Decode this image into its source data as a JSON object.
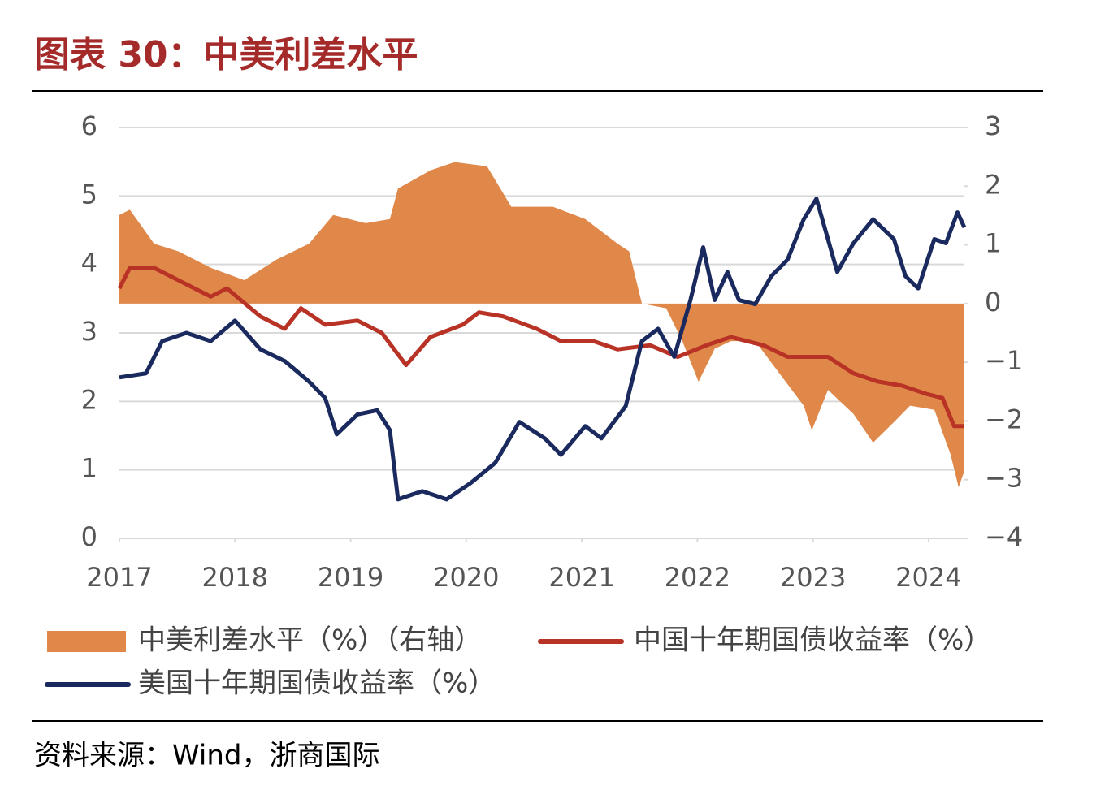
{
  "chart_data": {
    "type": "line",
    "title": "图表 30：中美利差水平",
    "source": "资料来源：Wind，浙商国际",
    "xlim": [
      2017,
      2024.31
    ],
    "xticks": [
      2017,
      2018,
      2019,
      2020,
      2021,
      2022,
      2023,
      2024
    ],
    "ylim": [
      0,
      6
    ],
    "yticks": [
      0,
      1,
      2,
      3,
      4,
      5,
      6
    ],
    "y2lim": [
      -4,
      3
    ],
    "y2ticks": [
      {
        "value": -4,
        "label": "−4"
      },
      {
        "value": -3,
        "label": "−3"
      },
      {
        "value": -2,
        "label": "−2"
      },
      {
        "value": -1,
        "label": "−1"
      },
      0,
      1,
      2,
      3
    ],
    "grid": true,
    "series": [
      {
        "name": "中美利差水平（%）（右轴）",
        "type": "area",
        "axis": "y2",
        "color": "#e0884a",
        "x": [
          2017.0,
          2017.09,
          2017.3,
          2017.51,
          2017.79,
          2018.08,
          2018.36,
          2018.64,
          2018.85,
          2019.13,
          2019.34,
          2019.41,
          2019.69,
          2019.9,
          2020.18,
          2020.39,
          2020.75,
          2021.03,
          2021.31,
          2021.41,
          2021.52,
          2021.73,
          2021.87,
          2022.01,
          2022.15,
          2022.29,
          2022.5,
          2022.71,
          2022.92,
          2022.99,
          2023.13,
          2023.35,
          2023.52,
          2023.7,
          2023.84,
          2024.05,
          2024.19,
          2024.26,
          2024.31
        ],
        "values": [
          1.51,
          1.6,
          1.02,
          0.89,
          0.61,
          0.4,
          0.75,
          1.02,
          1.51,
          1.37,
          1.44,
          1.96,
          2.27,
          2.41,
          2.34,
          1.65,
          1.65,
          1.44,
          1.02,
          0.89,
          0,
          -0.08,
          -0.64,
          -1.33,
          -0.77,
          -0.64,
          -0.64,
          -1.19,
          -1.74,
          -2.16,
          -1.47,
          -1.88,
          -2.37,
          -2.02,
          -1.74,
          -1.81,
          -2.57,
          -3.13,
          -2.85
        ]
      },
      {
        "name": "中国十年期国债收益率（%）",
        "type": "line",
        "color": "#b83225",
        "x": [
          2017.0,
          2017.09,
          2017.3,
          2017.51,
          2017.79,
          2017.93,
          2018.22,
          2018.43,
          2018.57,
          2018.78,
          2019.06,
          2019.27,
          2019.48,
          2019.69,
          2019.97,
          2020.11,
          2020.32,
          2020.61,
          2020.82,
          2021.1,
          2021.31,
          2021.59,
          2021.83,
          2022.08,
          2022.29,
          2022.57,
          2022.78,
          2022.99,
          2023.13,
          2023.35,
          2023.56,
          2023.77,
          2023.98,
          2024.12,
          2024.22,
          2024.31
        ],
        "values": [
          3.65,
          3.95,
          3.95,
          3.77,
          3.53,
          3.65,
          3.24,
          3.06,
          3.36,
          3.12,
          3.18,
          3.0,
          2.53,
          2.94,
          3.12,
          3.3,
          3.24,
          3.06,
          2.88,
          2.88,
          2.76,
          2.82,
          2.65,
          2.82,
          2.94,
          2.82,
          2.65,
          2.65,
          2.65,
          2.41,
          2.29,
          2.23,
          2.11,
          2.05,
          1.64,
          1.64
        ]
      },
      {
        "name": "美国十年期国债收益率（%）",
        "type": "line",
        "color": "#1a2a5e",
        "x": [
          2017.0,
          2017.23,
          2017.37,
          2017.58,
          2017.79,
          2018.0,
          2018.22,
          2018.43,
          2018.64,
          2018.78,
          2018.88,
          2019.06,
          2019.23,
          2019.34,
          2019.41,
          2019.62,
          2019.83,
          2020.04,
          2020.25,
          2020.46,
          2020.68,
          2020.82,
          2021.03,
          2021.17,
          2021.38,
          2021.52,
          2021.66,
          2021.8,
          2021.94,
          2022.05,
          2022.15,
          2022.26,
          2022.36,
          2022.5,
          2022.64,
          2022.78,
          2022.92,
          2023.03,
          2023.21,
          2023.35,
          2023.52,
          2023.7,
          2023.8,
          2023.91,
          2024.05,
          2024.15,
          2024.25,
          2024.31
        ],
        "values": [
          2.35,
          2.41,
          2.88,
          3.0,
          2.88,
          3.18,
          2.76,
          2.59,
          2.29,
          2.05,
          1.52,
          1.81,
          1.87,
          1.58,
          0.57,
          0.69,
          0.57,
          0.81,
          1.1,
          1.7,
          1.46,
          1.22,
          1.64,
          1.46,
          1.93,
          2.88,
          3.06,
          2.65,
          3.48,
          4.25,
          3.48,
          3.89,
          3.48,
          3.42,
          3.83,
          4.07,
          4.66,
          4.96,
          3.89,
          4.31,
          4.66,
          4.37,
          3.83,
          3.65,
          4.37,
          4.31,
          4.76,
          4.54
        ]
      }
    ]
  }
}
